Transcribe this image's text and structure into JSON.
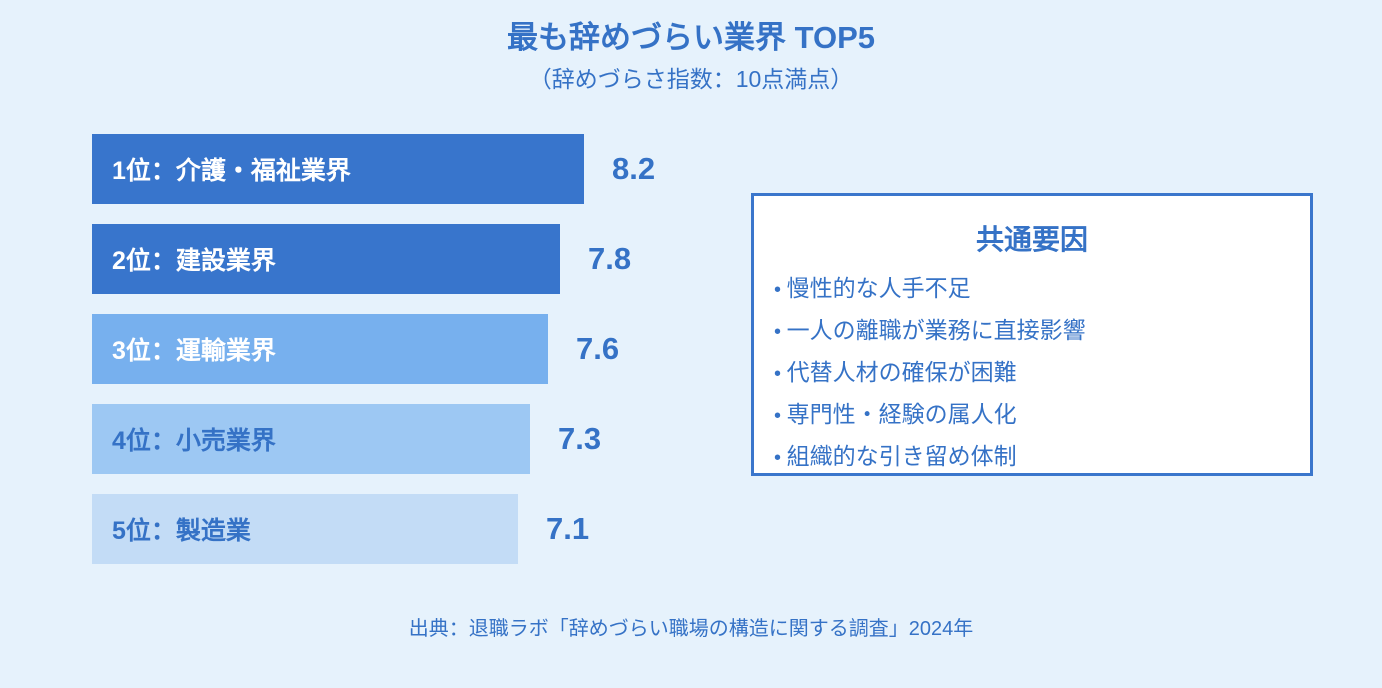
{
  "chart_data": {
    "type": "bar",
    "orientation": "horizontal",
    "title": "最も辞めづらい業界 TOP5",
    "subtitle": "（辞めづらさ指数：10点満点）",
    "categories": [
      "1位：介護・福祉業界",
      "2位：建設業界",
      "3位：運輸業界",
      "4位：小売業界",
      "5位：製造業"
    ],
    "values": [
      8.2,
      7.8,
      7.6,
      7.3,
      7.1
    ],
    "value_labels": [
      "8.2",
      "7.8",
      "7.6",
      "7.3",
      "7.1"
    ],
    "xlim": [
      0,
      10
    ],
    "grid": false,
    "bar_colors": [
      "#3875cc",
      "#3875cc",
      "#77b0ee",
      "#9dc8f3",
      "#c3dcf6"
    ],
    "label_colors": [
      "#ffffff",
      "#ffffff",
      "#ffffff",
      "#3572c6",
      "#3572c6"
    ]
  },
  "factors": {
    "title": "共通要因",
    "items": [
      "慢性的な人手不足",
      "一人の離職が業務に直接影響",
      "代替人材の確保が困難",
      "専門性・経験の属人化",
      "組織的な引き留め体制"
    ]
  },
  "footer": "出典：退職ラボ「辞めづらい職場の構造に関する調査」2024年",
  "colors": {
    "background": "#e6f2fc",
    "accent": "#3572c6"
  }
}
